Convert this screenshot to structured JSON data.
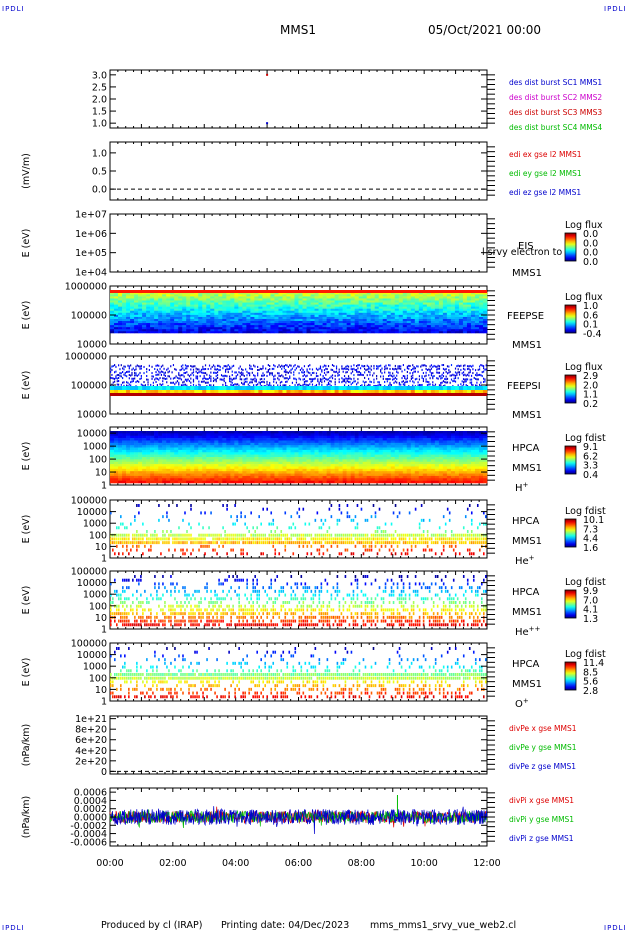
{
  "corner_marks": {
    "top_left": "IPDLI",
    "top_right": "IPDLI",
    "bottom_left": "IPDLI",
    "bottom_right": "IPDLI"
  },
  "header": {
    "title": "MMS1",
    "date": "05/Oct/2021 00:00"
  },
  "footer": {
    "producer": "Produced by cl (IRAP)",
    "printing": "Printing date: 04/Dec/2023",
    "script": "mms_mms1_srvy_vue_web2.cl"
  },
  "x_axis": {
    "ticks": [
      "00:00",
      "02:00",
      "04:00",
      "06:00",
      "08:00",
      "10:00",
      "12:00"
    ],
    "range_hours": [
      0,
      12
    ]
  },
  "colors": {
    "mms1": "#0000cc",
    "mms2": "#cc00cc",
    "mms3": "#cc0000",
    "mms4": "#00bb00",
    "x": "#dd0000",
    "y": "#00bb00",
    "z": "#0000cc"
  },
  "chart_data": [
    {
      "type": "scatter",
      "panel": "des_dist_burst",
      "yticks": [
        "3.0",
        "2.5",
        "2.0",
        "1.5",
        "1.0"
      ],
      "ylim": [
        0.8,
        3.2
      ],
      "points": [
        {
          "x": 5.0,
          "y": 3.0,
          "series": "mms3"
        },
        {
          "x": 5.0,
          "y": 1.0,
          "series": "mms1"
        }
      ],
      "legend": [
        {
          "text": "des dist burst SC1 MMS1",
          "series": "mms1"
        },
        {
          "text": "des dist burst SC2 MMS2",
          "series": "mms2"
        },
        {
          "text": "des dist burst SC3 MMS3",
          "series": "mms3"
        },
        {
          "text": "des dist burst SC4 MMS4",
          "series": "mms4"
        }
      ]
    },
    {
      "type": "line",
      "panel": "edi_e",
      "ylabel": "(mV/m)",
      "yticks": [
        "1.0",
        "0.5",
        "0.0"
      ],
      "ylim": [
        -0.3,
        1.3
      ],
      "reference_line": 0.0,
      "legend": [
        {
          "text": "edi ex gse l2 MMS1",
          "series": "x"
        },
        {
          "text": "edi ey gse l2 MMS1",
          "series": "y"
        },
        {
          "text": "edi ez gse l2 MMS1",
          "series": "z"
        }
      ]
    },
    {
      "type": "heatmap",
      "panel": "eis",
      "ylabel": "E (eV)",
      "yticks": [
        "1e+07",
        "1e+06",
        "1e+05",
        "1e+04"
      ],
      "ylim": [
        10000,
        10000000
      ],
      "labels": [
        "EIS",
        "MMS1"
      ],
      "overlay_text": "l srvy electron to",
      "colorbar": {
        "title": "Log flux",
        "ticks": [
          "0.0",
          "0.0",
          "0.0",
          "0.0"
        ]
      }
    },
    {
      "type": "heatmap",
      "panel": "feeps_e",
      "ylabel": "E (eV)",
      "yticks": [
        "1000000",
        "100000",
        "10000"
      ],
      "ylim": [
        10000,
        1000000
      ],
      "labels": [
        "FEEPSE",
        "MMS1"
      ],
      "colorbar": {
        "title": "Log flux",
        "ticks": [
          "1.0",
          "0.6",
          "0.1",
          "-0.4"
        ]
      }
    },
    {
      "type": "heatmap",
      "panel": "feeps_i",
      "ylabel": "E (eV)",
      "yticks": [
        "1000000",
        "100000",
        "10000"
      ],
      "ylim": [
        10000,
        1000000
      ],
      "labels": [
        "FEEPSI",
        "MMS1"
      ],
      "colorbar": {
        "title": "Log flux",
        "ticks": [
          "2.9",
          "2.0",
          "1.1",
          "0.2"
        ]
      }
    },
    {
      "type": "heatmap",
      "panel": "hpca_h",
      "ylabel": "E (eV)",
      "yticks": [
        "10000",
        "1000",
        "100",
        "10",
        "1"
      ],
      "ylim": [
        1,
        30000
      ],
      "labels": [
        "HPCA",
        "MMS1"
      ],
      "species": "H",
      "species_sup": "+",
      "colorbar": {
        "title": "Log fdist",
        "ticks": [
          "9.1",
          "6.2",
          "3.3",
          "0.4"
        ]
      }
    },
    {
      "type": "heatmap",
      "panel": "hpca_he",
      "ylabel": "E (eV)",
      "yticks": [
        "100000",
        "10000",
        "1000",
        "100",
        "10",
        "1"
      ],
      "ylim": [
        1,
        100000
      ],
      "labels": [
        "HPCA",
        "MMS1"
      ],
      "species": "He",
      "species_sup": "+",
      "colorbar": {
        "title": "Log fdist",
        "ticks": [
          "10.1",
          "7.3",
          "4.4",
          "1.6"
        ]
      }
    },
    {
      "type": "heatmap",
      "panel": "hpca_he2",
      "ylabel": "E (eV)",
      "yticks": [
        "100000",
        "10000",
        "1000",
        "100",
        "10",
        "1"
      ],
      "ylim": [
        1,
        100000
      ],
      "labels": [
        "HPCA",
        "MMS1"
      ],
      "species": "He",
      "species_sup": "++",
      "colorbar": {
        "title": "Log fdist",
        "ticks": [
          "9.9",
          "7.0",
          "4.1",
          "1.3"
        ]
      }
    },
    {
      "type": "heatmap",
      "panel": "hpca_o",
      "ylabel": "E (eV)",
      "yticks": [
        "100000",
        "10000",
        "1000",
        "100",
        "10",
        "1"
      ],
      "ylim": [
        1,
        100000
      ],
      "labels": [
        "HPCA",
        "MMS1"
      ],
      "species": "O",
      "species_sup": "+",
      "colorbar": {
        "title": "Log fdist",
        "ticks": [
          "11.4",
          "8.5",
          "5.6",
          "2.8"
        ]
      }
    },
    {
      "type": "line",
      "panel": "divpe",
      "ylabel": "(nPa/km)",
      "yticks": [
        "1e+21",
        "8e+20",
        "6e+20",
        "4e+20",
        "2e+20",
        "0"
      ],
      "ylim": [
        -5e+19,
        1.05e+21
      ],
      "reference_line": 0,
      "legend": [
        {
          "text": "divPe x gse MMS1",
          "series": "x"
        },
        {
          "text": "divPe y gse MMS1",
          "series": "y"
        },
        {
          "text": "divPe z gse MMS1",
          "series": "z"
        }
      ]
    },
    {
      "type": "line",
      "panel": "divpi",
      "ylabel": "(nPa/km)",
      "yticks": [
        "0.0006",
        "0.0004",
        "0.0002",
        "0.0000",
        "-0.0002",
        "-0.0004",
        "-0.0006"
      ],
      "ylim": [
        -0.0007,
        0.0007
      ],
      "legend": [
        {
          "text": "divPi x gse MMS1",
          "series": "x"
        },
        {
          "text": "divPi y gse MMS1",
          "series": "y"
        },
        {
          "text": "divPi z gse MMS1",
          "series": "z"
        }
      ]
    }
  ]
}
